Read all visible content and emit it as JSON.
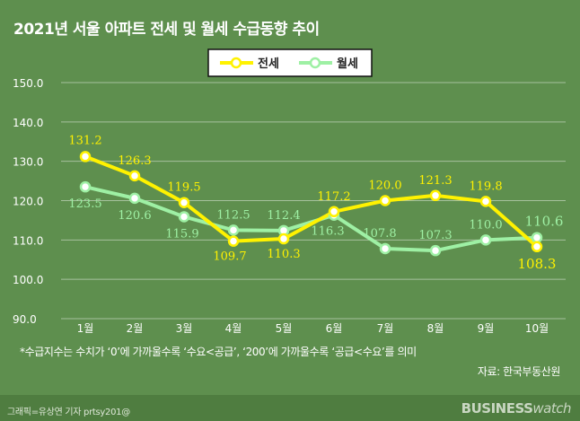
{
  "title": "2021년 서울 아파트 전세 및 월세 수급동향 추이",
  "footnote": "*수급지수는 수치가 ‘0’에 가까울수록 ‘수요<공급’, ‘200’에 가까울수록 ‘공급<수요’를 의미",
  "source": "자료: 한국부동산원",
  "credit": "그래픽=유상연 기자 prtsy201@",
  "brand": {
    "part1": "BUSINESS",
    "part2": "watch"
  },
  "colors": {
    "jeonse": "#fff200",
    "wolse": "#9ef0a4",
    "background": "#5e8f4e"
  },
  "chart_data": {
    "type": "line",
    "categories": [
      "1월",
      "2월",
      "3월",
      "4월",
      "5월",
      "6월",
      "7월",
      "8월",
      "9월",
      "10월"
    ],
    "series": [
      {
        "name": "전세",
        "values": [
          131.2,
          126.3,
          119.5,
          109.7,
          110.3,
          117.2,
          120.0,
          121.3,
          119.8,
          108.3
        ]
      },
      {
        "name": "월세",
        "values": [
          123.5,
          120.6,
          115.9,
          112.5,
          112.4,
          116.3,
          107.8,
          107.3,
          110.0,
          110.6
        ]
      }
    ],
    "yticks": [
      "150.0",
      "140.0",
      "130.0",
      "120.0",
      "110.0",
      "100.0",
      "90.0"
    ],
    "ylim": [
      90,
      150
    ],
    "grid": true,
    "legend": "top-center"
  }
}
